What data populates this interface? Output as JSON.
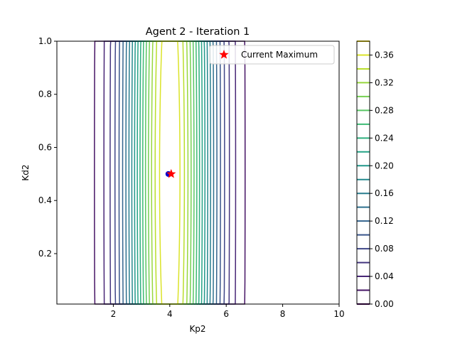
{
  "chart_data": {
    "type": "contour",
    "title": "Agent 2 - Iteration 1",
    "xlabel": "Kp2",
    "ylabel": "Kd2",
    "xlim": [
      0,
      10
    ],
    "ylim": [
      0.01,
      1.0
    ],
    "xticks": [
      2,
      4,
      6,
      8,
      10
    ],
    "yticks": [
      0.2,
      0.4,
      0.6,
      0.8,
      1.0
    ],
    "x_tick_labels": [
      "2",
      "4",
      "6",
      "8",
      "10"
    ],
    "y_tick_labels": [
      "0.2",
      "0.4",
      "0.6",
      "0.8",
      "1.0"
    ],
    "colormap": "viridis",
    "contour_levels": [
      0.0,
      0.02,
      0.04,
      0.06,
      0.08,
      0.1,
      0.12,
      0.14,
      0.16,
      0.18,
      0.2,
      0.22,
      0.24,
      0.26,
      0.28,
      0.3,
      0.32,
      0.34,
      0.36,
      0.38
    ],
    "colorbar_ticks": [
      0.0,
      0.04,
      0.08,
      0.12,
      0.16,
      0.2,
      0.24,
      0.28,
      0.32,
      0.36
    ],
    "colorbar_tick_labels": [
      "0.00",
      "0.04",
      "0.08",
      "0.12",
      "0.16",
      "0.20",
      "0.24",
      "0.28",
      "0.32",
      "0.36"
    ],
    "surface": {
      "peak": 0.38,
      "center_x": 4.0,
      "center_y": 0.5,
      "sigma_x": 1.1,
      "sigma_y": 2.4
    },
    "observed_point": {
      "x": 4.0,
      "y": 0.5,
      "color": "#0000cc"
    },
    "current_maximum": {
      "x": 4.05,
      "y": 0.5,
      "color": "#ff0000",
      "marker": "star"
    },
    "legend": {
      "position": "top-right",
      "entries": [
        "Current Maximum"
      ]
    },
    "grid": false
  }
}
